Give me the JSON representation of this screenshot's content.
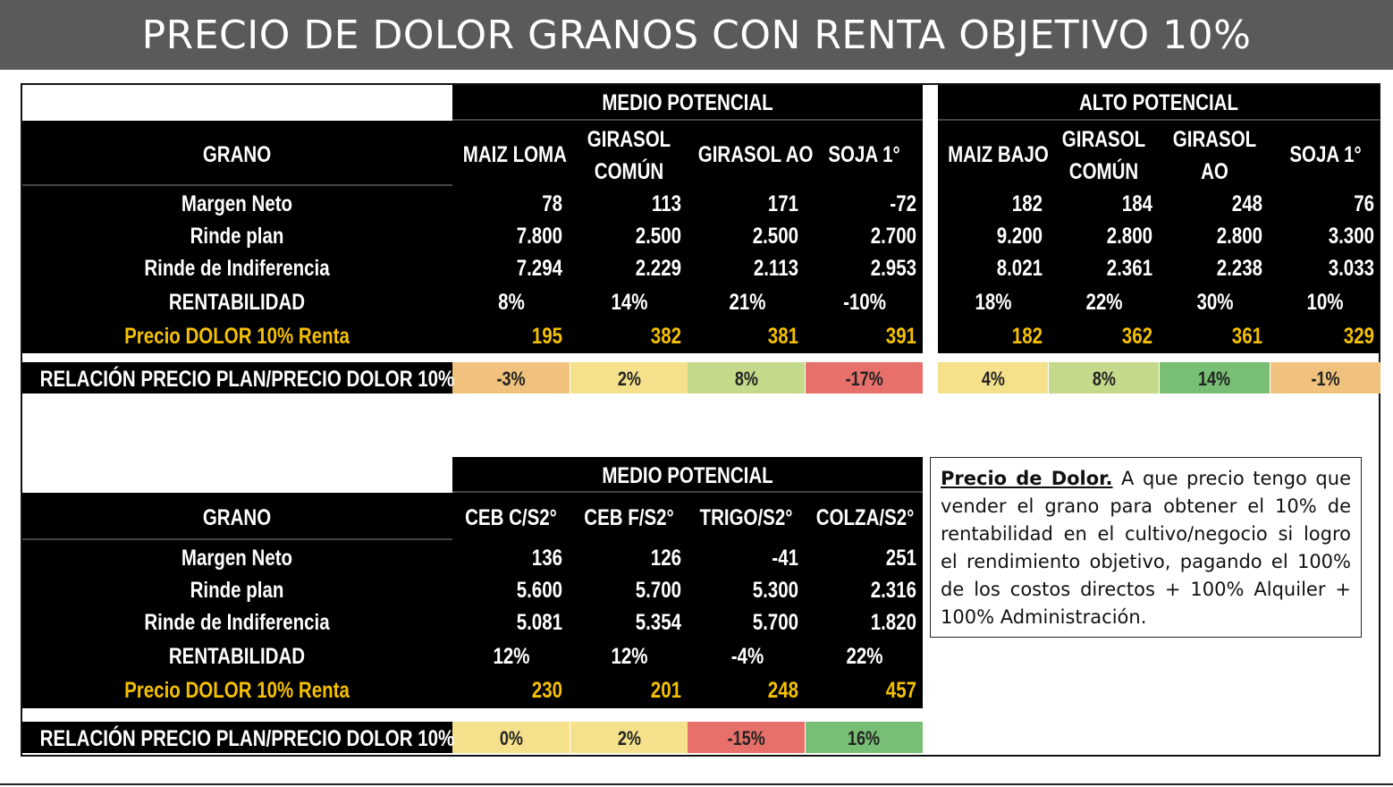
{
  "title": "PRECIO DE DOLOR GRANOS CON RENTA OBJETIVO 10%",
  "colors": {
    "red": "#e8706b",
    "orange": "#f1c27d",
    "yellow": "#f5e18c",
    "light_green": "#c4d98a",
    "green": "#78bf75",
    "accent": "#f5c000"
  },
  "row_labels": {
    "grano": "GRANO",
    "margen": "Margen Neto",
    "rinde": "Rinde plan",
    "indif": "Rinde de Indiferencia",
    "rent": "RENTABILIDAD",
    "precio": "Precio DOLOR 10% Renta",
    "relacion": "RELACIÓN PRECIO PLAN/PRECIO DOLOR 10%"
  },
  "table1": {
    "medio": {
      "header": "MEDIO POTENCIAL",
      "cols": [
        {
          "name": [
            "MAIZ LOMA"
          ],
          "margen": "78",
          "rinde": "7.800",
          "indif": "7.294",
          "rent": "8%",
          "precio": "195",
          "rel": "-3%",
          "rel_color": "orange"
        },
        {
          "name": [
            "GIRASOL",
            "COMÚN"
          ],
          "margen": "113",
          "rinde": "2.500",
          "indif": "2.229",
          "rent": "14%",
          "precio": "382",
          "rel": "2%",
          "rel_color": "yellow"
        },
        {
          "name": [
            "GIRASOL  AO"
          ],
          "margen": "171",
          "rinde": "2.500",
          "indif": "2.113",
          "rent": "21%",
          "precio": "381",
          "rel": "8%",
          "rel_color": "light_green"
        },
        {
          "name": [
            "SOJA 1°"
          ],
          "margen": "-72",
          "rinde": "2.700",
          "indif": "2.953",
          "rent": "-10%",
          "precio": "391",
          "rel": "-17%",
          "rel_color": "red"
        }
      ]
    },
    "alto": {
      "header": "ALTO POTENCIAL",
      "cols": [
        {
          "name": [
            "MAIZ BAJO"
          ],
          "margen": "182",
          "rinde": "9.200",
          "indif": "8.021",
          "rent": "18%",
          "precio": "182",
          "rel": "4%",
          "rel_color": "yellow"
        },
        {
          "name": [
            "GIRASOL",
            "COMÚN"
          ],
          "margen": "184",
          "rinde": "2.800",
          "indif": "2.361",
          "rent": "22%",
          "precio": "362",
          "rel": "8%",
          "rel_color": "light_green"
        },
        {
          "name": [
            "GIRASOL",
            "AO"
          ],
          "margen": "248",
          "rinde": "2.800",
          "indif": "2.238",
          "rent": "30%",
          "precio": "361",
          "rel": "14%",
          "rel_color": "green"
        },
        {
          "name": [
            "SOJA 1°"
          ],
          "margen": "76",
          "rinde": "3.300",
          "indif": "3.033",
          "rent": "10%",
          "precio": "329",
          "rel": "-1%",
          "rel_color": "orange"
        }
      ]
    }
  },
  "table2": {
    "header": "MEDIO POTENCIAL",
    "cols": [
      {
        "name": [
          "CEB C/S2°"
        ],
        "margen": "136",
        "rinde": "5.600",
        "indif": "5.081",
        "rent": "12%",
        "precio": "230",
        "rel": "0%",
        "rel_color": "yellow"
      },
      {
        "name": [
          "CEB F/S2°"
        ],
        "margen": "126",
        "rinde": "5.700",
        "indif": "5.354",
        "rent": "12%",
        "precio": "201",
        "rel": "2%",
        "rel_color": "yellow"
      },
      {
        "name": [
          "TRIGO/S2°"
        ],
        "margen": "-41",
        "rinde": "5.300",
        "indif": "5.700",
        "rent": "-4%",
        "precio": "248",
        "rel": "-15%",
        "rel_color": "red"
      },
      {
        "name": [
          "COLZA/S2°"
        ],
        "margen": "251",
        "rinde": "2.316",
        "indif": "1.820",
        "rent": "22%",
        "precio": "457",
        "rel": "16%",
        "rel_color": "green"
      }
    ]
  },
  "note": {
    "title": "Precio de Dolor.",
    "text": " A que precio tengo que vender el grano para obtener el 10% de rentabilidad en el cultivo/negocio si logro el rendimiento objetivo, pagando el 100% de los costos directos + 100% Alquiler + 100% Administración."
  }
}
